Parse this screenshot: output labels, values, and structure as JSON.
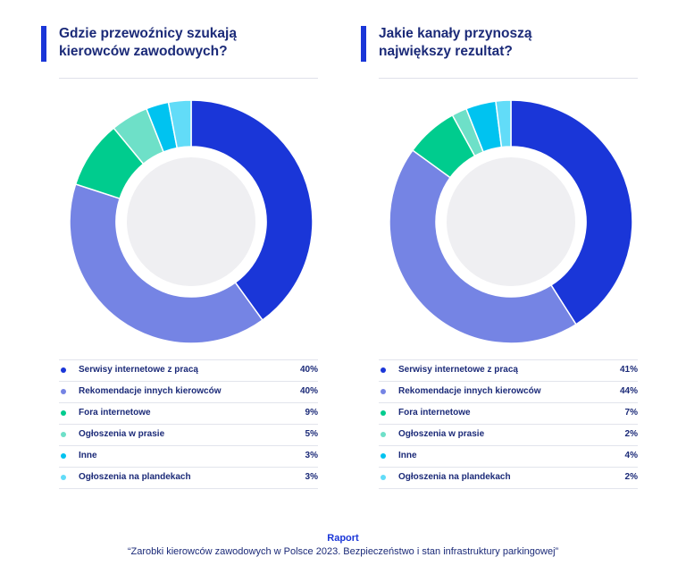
{
  "colors": {
    "accent": "#1a36d8",
    "text": "#1b2a78",
    "inner_circle": "#efeff2",
    "series": [
      "#1a36d8",
      "#7584e4",
      "#00cc8e",
      "#6ee0c8",
      "#00c3f0",
      "#62dcf8"
    ]
  },
  "chart_data": [
    {
      "type": "pie",
      "title": "Gdzie przewoźnicy szukają\nkierowców zawodowych?",
      "categories": [
        "Serwisy internetowe z pracą",
        "Rekomendacje innych kierowców",
        "Fora internetowe",
        "Ogłoszenia w prasie",
        "Inne",
        "Ogłoszenia na plandekach"
      ],
      "values": [
        40,
        40,
        9,
        5,
        3,
        3
      ],
      "value_labels": [
        "40%",
        "40%",
        "9%",
        "5%",
        "3%",
        "3%"
      ],
      "unit": "%",
      "legend": "bottom"
    },
    {
      "type": "pie",
      "title": "Jakie kanały przynoszą\nnajwiększy rezultat?",
      "categories": [
        "Serwisy internetowe z pracą",
        "Rekomendacje innych kierowców",
        "Fora internetowe",
        "Ogłoszenia w prasie",
        "Inne",
        "Ogłoszenia na plandekach"
      ],
      "values": [
        41,
        44,
        7,
        2,
        4,
        2
      ],
      "value_labels": [
        "41%",
        "44%",
        "7%",
        "2%",
        "4%",
        "2%"
      ],
      "unit": "%",
      "legend": "bottom"
    }
  ],
  "footer": {
    "title": "Raport",
    "subtitle": "“Zarobki kierowców zawodowych w Polsce 2023. Bezpieczeństwo i stan infrastruktury parkingowej”"
  }
}
